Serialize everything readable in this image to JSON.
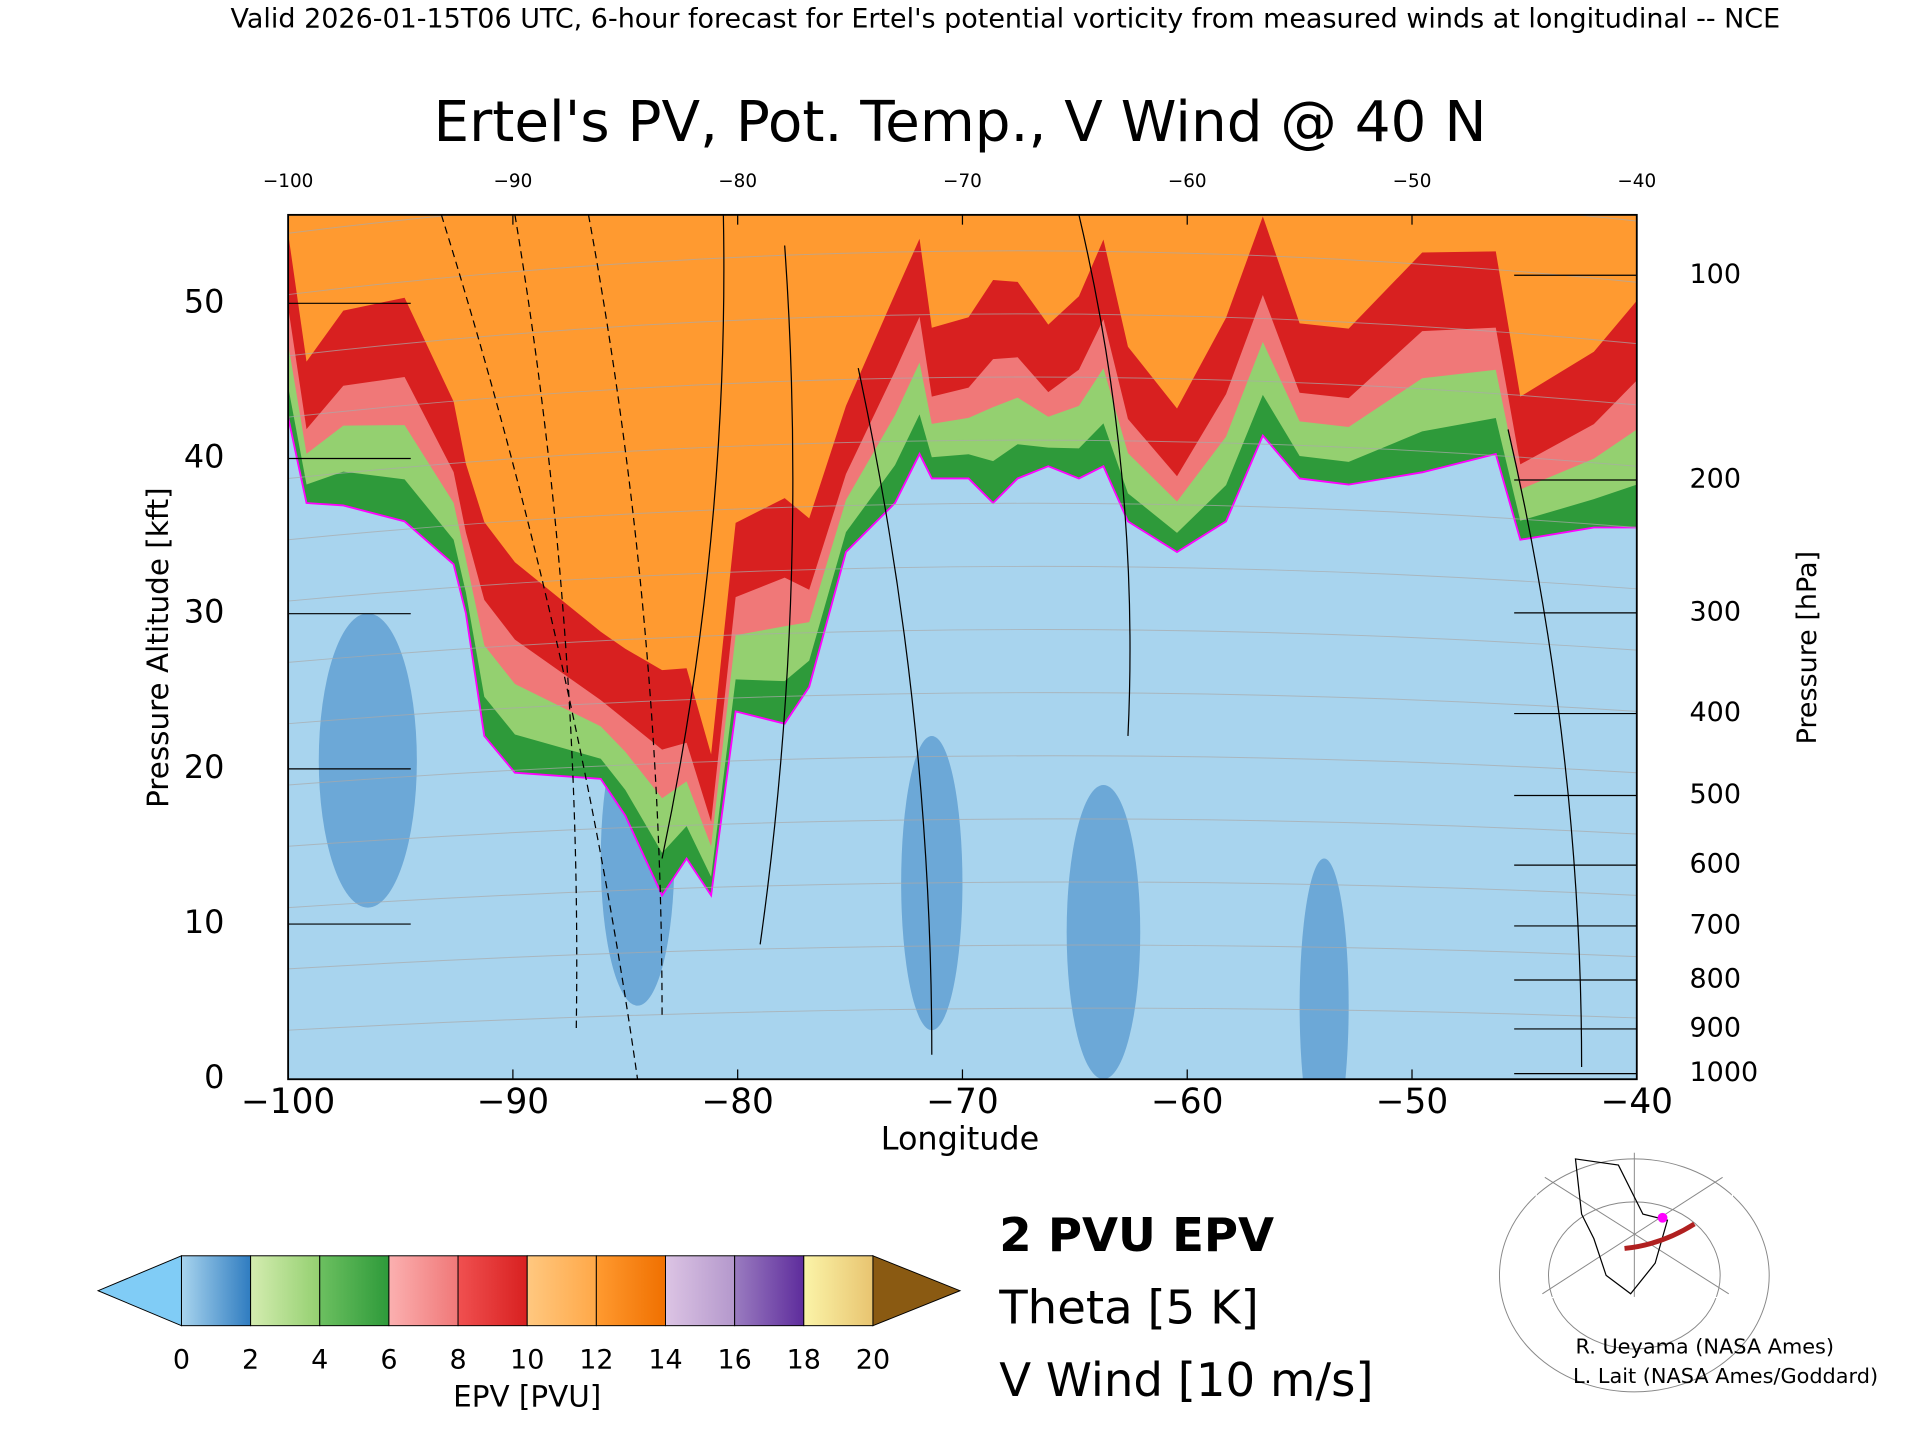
{
  "chart_data": {
    "type": "contour",
    "header": "Valid 2026-01-15T06 UTC, 6-hour forecast for Ertel's potential vorticity from measured winds at longitudinal -- NCE",
    "title": "Ertel's PV, Pot. Temp., V Wind @ 40 N",
    "x_label": "Longitude",
    "y_label": "Pressure Altitude [kft]",
    "y2_label": "Pressure [hPa]",
    "xlim": [
      -100,
      -40
    ],
    "xticks": [
      {
        "value": -100,
        "label": "−100"
      },
      {
        "value": -90,
        "label": "−90"
      },
      {
        "value": -80,
        "label": "−80"
      },
      {
        "value": -70,
        "label": "−70"
      },
      {
        "value": -60,
        "label": "−60"
      },
      {
        "value": -50,
        "label": "−50"
      },
      {
        "value": -40,
        "label": "−40"
      }
    ],
    "ylim": [
      0,
      55.7
    ],
    "yticks": [
      0,
      10,
      20,
      30,
      40,
      50
    ],
    "y2scale": "standard-atmosphere",
    "y2ticks": [
      100,
      200,
      300,
      400,
      500,
      600,
      700,
      800,
      900,
      1000
    ],
    "colorbar": {
      "label": "EPV [PVU]",
      "lim": [
        0,
        20
      ],
      "ticks": [
        0,
        2,
        4,
        6,
        8,
        10,
        12,
        14,
        16,
        18,
        20
      ],
      "colors": [
        [
          "#a8d4ee",
          "#2f7cc0"
        ],
        [
          "#d4ecb0",
          "#94d070"
        ],
        [
          "#6cc060",
          "#2e9a3a"
        ],
        [
          "#fbb0b0",
          "#f07878"
        ],
        [
          "#f05050",
          "#d82020"
        ],
        [
          "#ffc880",
          "#ffa848"
        ],
        [
          "#ff9a30",
          "#f07000"
        ],
        [
          "#dcc4e4",
          "#b498cc"
        ],
        [
          "#9a7cc0",
          "#5e2c9c"
        ],
        [
          "#fbf4a8",
          "#e8c470"
        ]
      ],
      "under_color": "#80ccf6",
      "over_color": "#8a5a12"
    },
    "legend": [
      {
        "label": "2 PVU EPV",
        "color": "#ff00ff"
      },
      {
        "label": "Theta [5 K]",
        "color": "#aaaaaa"
      },
      {
        "label": "V Wind [10 m/s]",
        "color": "#000000"
      }
    ],
    "credits": [
      "R. Ueyama (NASA Ames)",
      "L. Lait (NASA Ames/Goddard)"
    ]
  }
}
